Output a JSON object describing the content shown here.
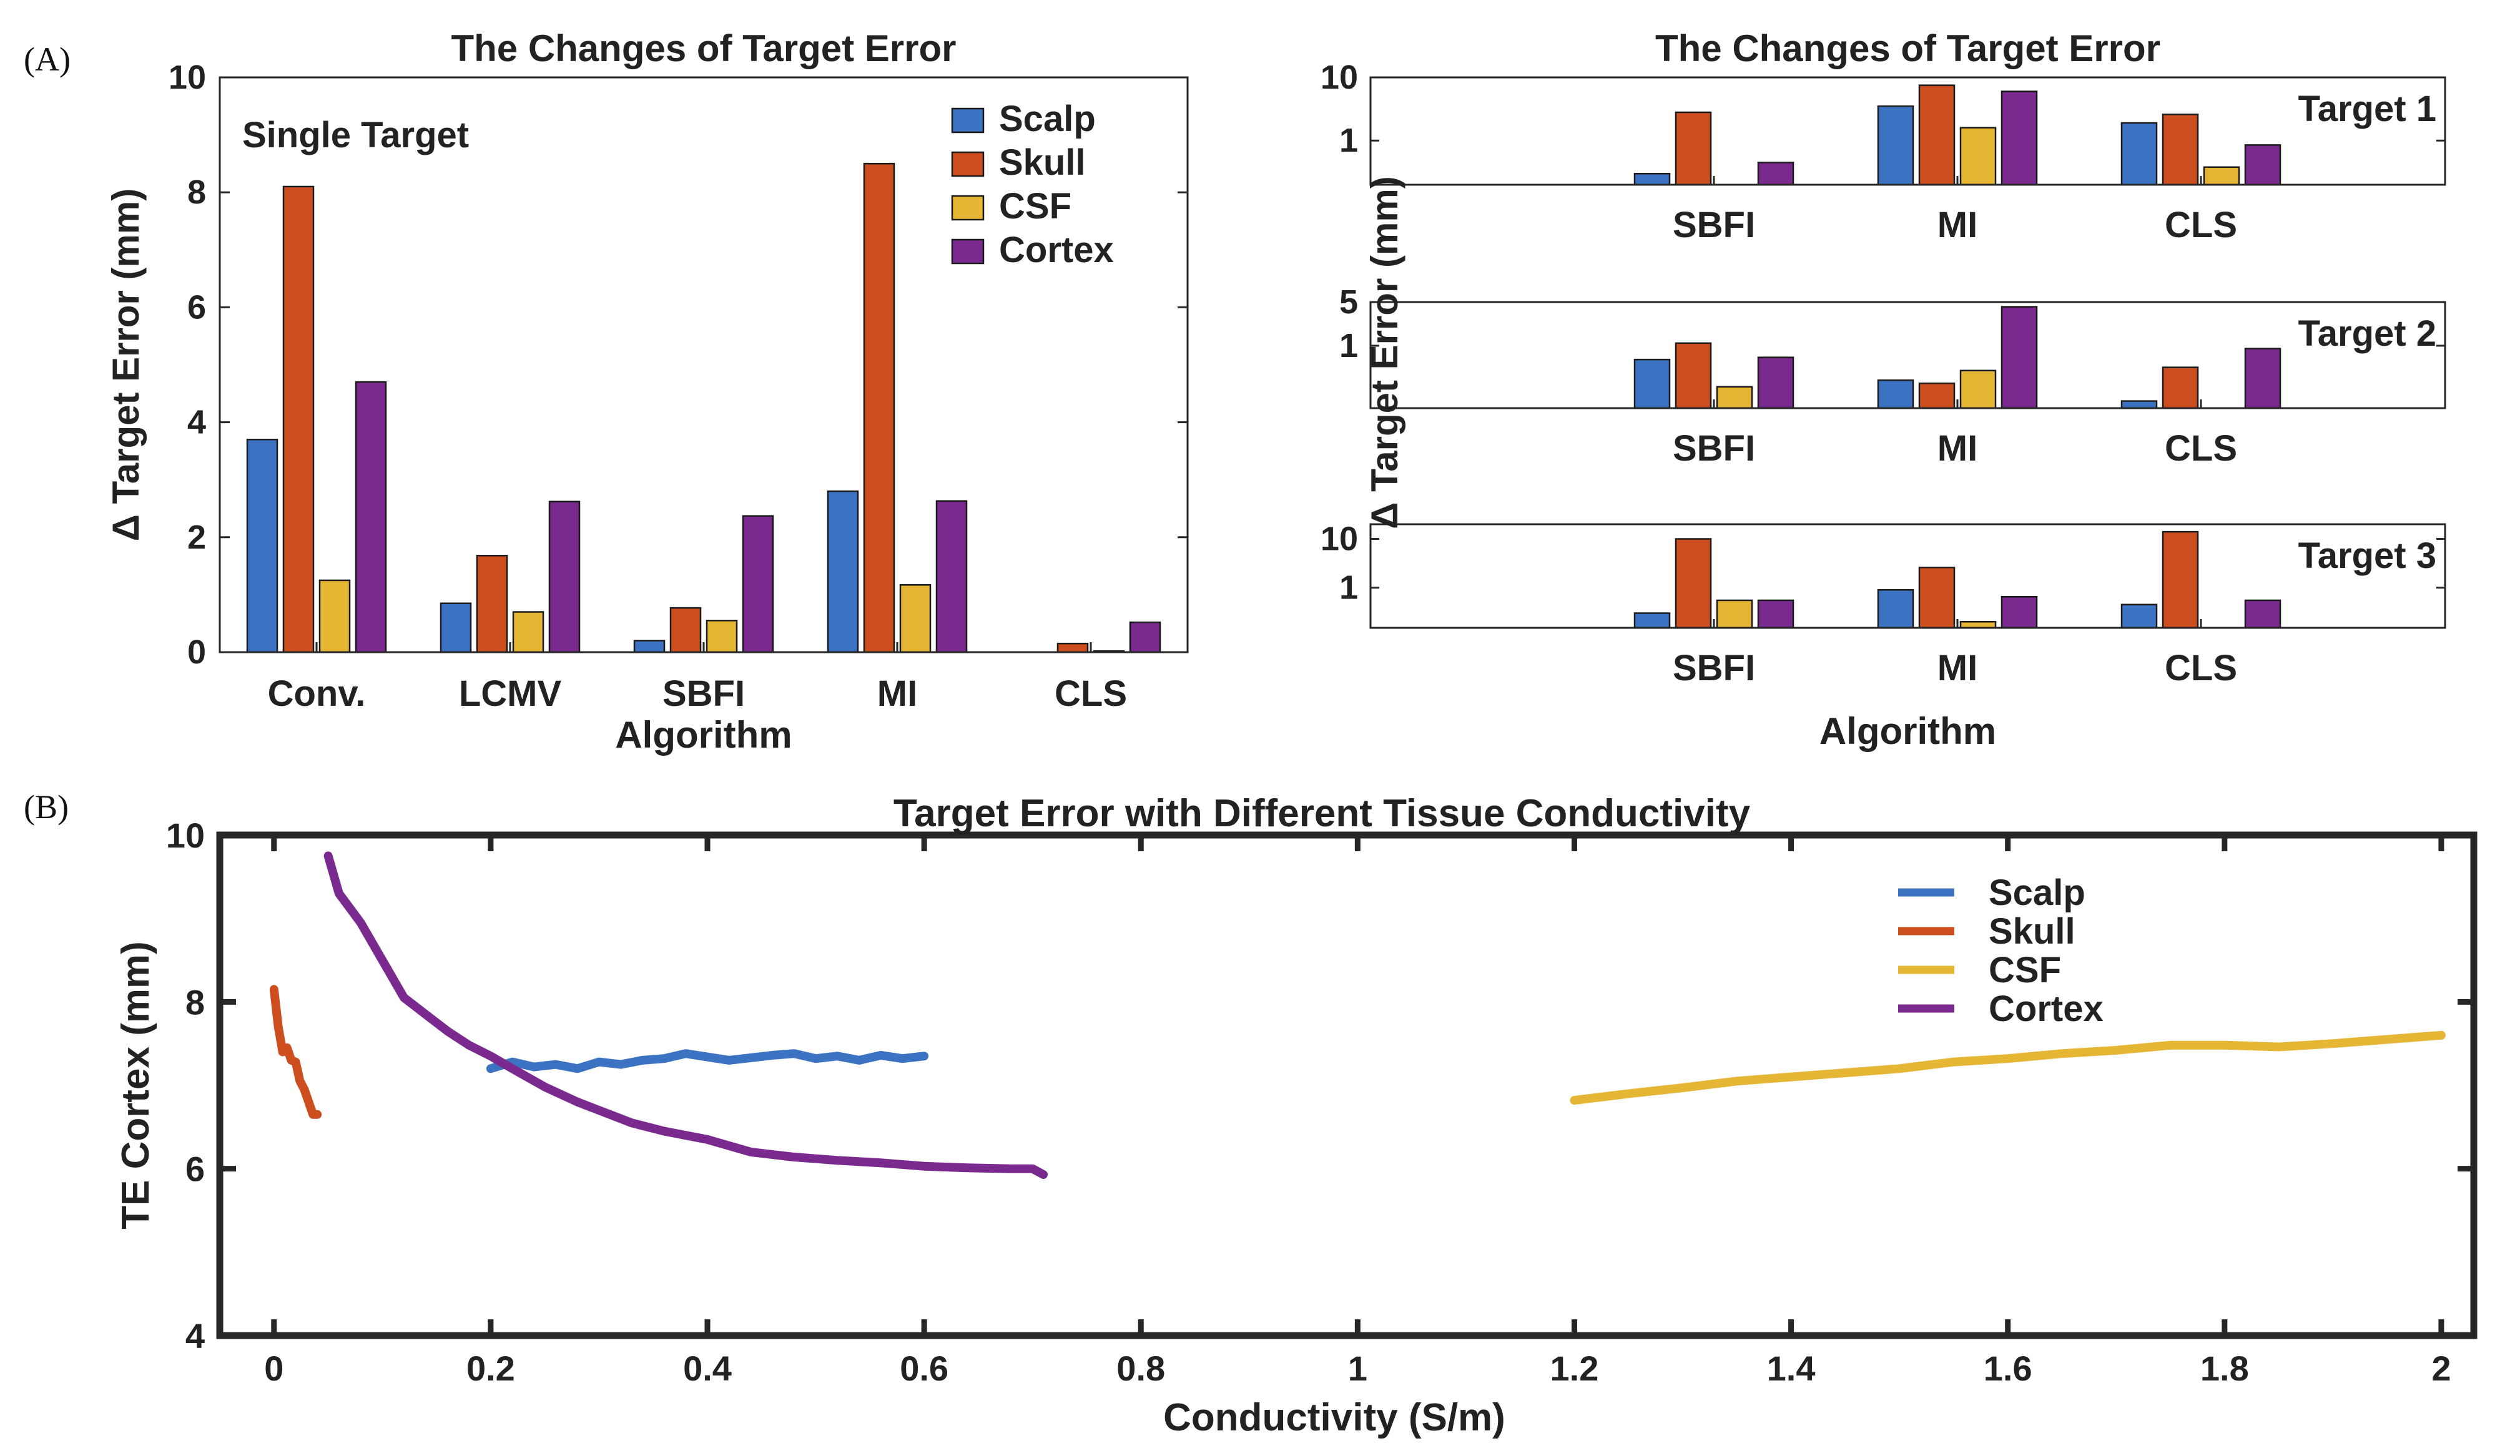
{
  "panel_labels": {
    "a": "(A)",
    "b": "(B)"
  },
  "colors": {
    "scalp": "#3b73c2",
    "skull": "#cc4e1f",
    "csf": "#e5b534",
    "cortex": "#7a2a8f",
    "axis": "#262626"
  },
  "chart_data": [
    {
      "id": "single",
      "type": "bar",
      "title": "The Changes of Target Error",
      "annotation": "Single Target",
      "xlabel": "Algorithm",
      "ylabel": "Δ Target Error (mm)",
      "ylim": [
        0,
        10
      ],
      "yticks": [
        "0",
        "2",
        "4",
        "6",
        "8",
        "10"
      ],
      "legend_position": "top-right",
      "categories": [
        "Conv.",
        "LCMV",
        "SBFI",
        "MI",
        "CLS"
      ],
      "series": [
        {
          "name": "Scalp",
          "color": "#3b73c2",
          "values": [
            3.7,
            0.85,
            0.2,
            2.8,
            0.0
          ]
        },
        {
          "name": "Skull",
          "color": "#cc4e1f",
          "values": [
            8.1,
            1.68,
            0.77,
            8.5,
            0.15
          ]
        },
        {
          "name": "CSF",
          "color": "#e5b534",
          "values": [
            1.25,
            0.7,
            0.55,
            1.17,
            0.02
          ]
        },
        {
          "name": "Cortex",
          "color": "#7a2a8f",
          "values": [
            4.7,
            2.62,
            2.37,
            2.63,
            0.52
          ]
        }
      ]
    },
    {
      "id": "multi",
      "type": "bar",
      "title": "The Changes of Target Error",
      "xlabel": "Algorithm",
      "ylabel": "Δ Target Error (mm)",
      "yscale": "log",
      "categories": [
        "SBFI",
        "MI",
        "CLS"
      ],
      "series_names": [
        "Scalp",
        "Skull",
        "CSF",
        "Cortex"
      ],
      "subplots": [
        {
          "label": "Target 1",
          "ylim": [
            0.2,
            10
          ],
          "ytick_labels": [
            "10",
            "1"
          ],
          "ytick_values": [
            10,
            1
          ],
          "values": [
            [
              0.3,
              2.8,
              0.0,
              0.45
            ],
            [
              3.5,
              7.5,
              1.6,
              6.0
            ],
            [
              1.9,
              2.6,
              0.38,
              0.85
            ]
          ]
        },
        {
          "label": "Target 2",
          "ylim": [
            0.1,
            5
          ],
          "ytick_labels": [
            "5",
            "1"
          ],
          "ytick_values": [
            5,
            1
          ],
          "values": [
            [
              0.6,
              1.1,
              0.22,
              0.65
            ],
            [
              0.28,
              0.25,
              0.4,
              4.2
            ],
            [
              0.13,
              0.45,
              0.0,
              0.9
            ]
          ]
        },
        {
          "label": "Target 3",
          "ylim": [
            0.15,
            20
          ],
          "ytick_labels": [
            "10",
            "1"
          ],
          "ytick_values": [
            10,
            1
          ],
          "values": [
            [
              0.3,
              10.0,
              0.55,
              0.55
            ],
            [
              0.9,
              2.6,
              0.2,
              0.65
            ],
            [
              0.45,
              14.0,
              0.0,
              0.55
            ]
          ]
        }
      ]
    },
    {
      "id": "conductivity",
      "type": "line",
      "title": "Target Error with Different Tissue Conductivity",
      "xlabel": "Conductivity (S/m)",
      "ylabel": "TE Cortex (mm)",
      "xlim": [
        -0.05,
        2.03
      ],
      "ylim": [
        4,
        10
      ],
      "xticks": [
        0,
        0.2,
        0.4,
        0.6,
        0.8,
        1,
        1.2,
        1.4,
        1.6,
        1.8,
        2
      ],
      "xtick_labels": [
        "0",
        "0.2",
        "0.4",
        "0.6",
        "0.8",
        "1",
        "1.2",
        "1.4",
        "1.6",
        "1.8",
        "2"
      ],
      "yticks": [
        4,
        6,
        8,
        10
      ],
      "ytick_labels": [
        "4",
        "6",
        "8",
        "10"
      ],
      "legend_position": "top-right",
      "series": [
        {
          "name": "Scalp",
          "color": "#3b73c2",
          "x": [
            0.2,
            0.22,
            0.24,
            0.26,
            0.28,
            0.3,
            0.32,
            0.34,
            0.36,
            0.38,
            0.4,
            0.42,
            0.44,
            0.46,
            0.48,
            0.5,
            0.52,
            0.54,
            0.56,
            0.58,
            0.6
          ],
          "y": [
            7.2,
            7.28,
            7.22,
            7.25,
            7.2,
            7.28,
            7.25,
            7.3,
            7.32,
            7.38,
            7.34,
            7.3,
            7.33,
            7.36,
            7.38,
            7.32,
            7.35,
            7.3,
            7.36,
            7.32,
            7.35
          ]
        },
        {
          "name": "Skull",
          "color": "#cc4e1f",
          "x": [
            0.0,
            0.004,
            0.008,
            0.012,
            0.016,
            0.02,
            0.024,
            0.028,
            0.032,
            0.036,
            0.04
          ],
          "y": [
            8.15,
            7.7,
            7.4,
            7.45,
            7.3,
            7.28,
            7.05,
            6.95,
            6.8,
            6.65,
            6.65
          ]
        },
        {
          "name": "CSF",
          "color": "#e5b534",
          "x": [
            1.2,
            1.25,
            1.3,
            1.35,
            1.4,
            1.45,
            1.5,
            1.55,
            1.6,
            1.65,
            1.7,
            1.75,
            1.8,
            1.85,
            1.9,
            1.95,
            2.0
          ],
          "y": [
            6.82,
            6.9,
            6.97,
            7.05,
            7.1,
            7.15,
            7.2,
            7.28,
            7.32,
            7.38,
            7.42,
            7.48,
            7.48,
            7.46,
            7.5,
            7.55,
            7.6
          ]
        },
        {
          "name": "Cortex",
          "color": "#7a2a8f",
          "x": [
            0.05,
            0.06,
            0.08,
            0.1,
            0.12,
            0.14,
            0.16,
            0.18,
            0.2,
            0.22,
            0.25,
            0.28,
            0.3,
            0.33,
            0.36,
            0.4,
            0.44,
            0.48,
            0.52,
            0.56,
            0.6,
            0.64,
            0.68,
            0.7,
            0.71
          ],
          "y": [
            9.75,
            9.3,
            8.95,
            8.5,
            8.05,
            7.85,
            7.65,
            7.48,
            7.35,
            7.2,
            6.98,
            6.8,
            6.7,
            6.55,
            6.45,
            6.35,
            6.2,
            6.14,
            6.1,
            6.07,
            6.03,
            6.01,
            6.0,
            6.0,
            5.93
          ]
        }
      ]
    }
  ]
}
